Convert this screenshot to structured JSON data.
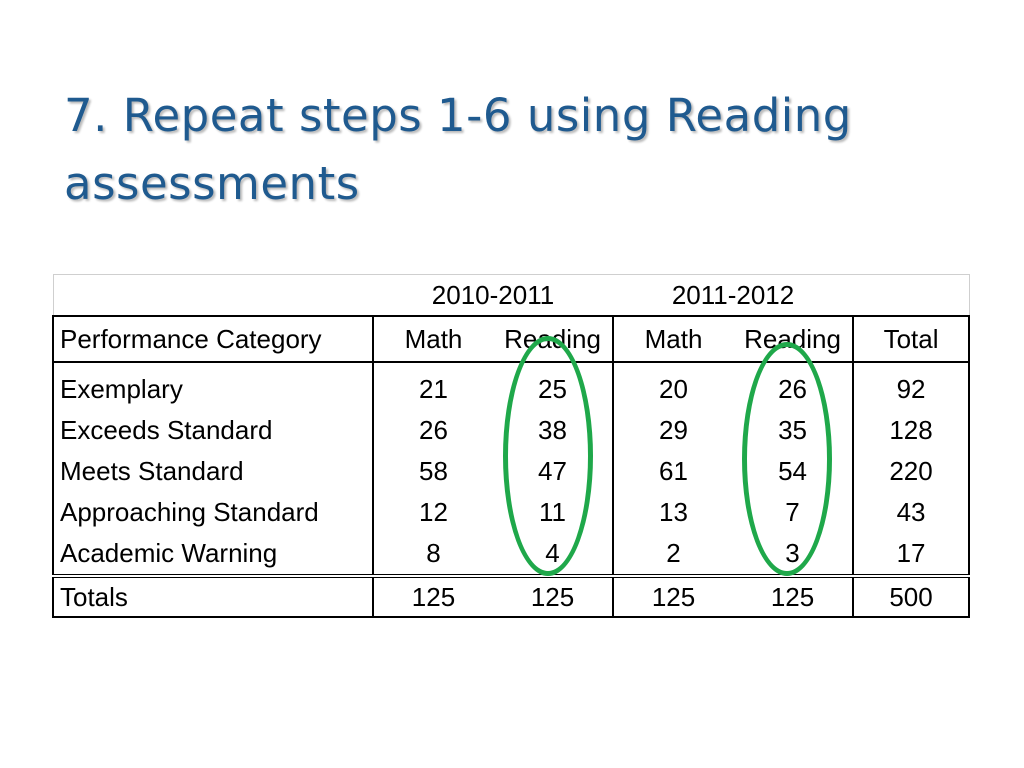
{
  "title": {
    "line1": "7. Repeat steps 1-6 using Reading",
    "line2": "assessments"
  },
  "table": {
    "years": [
      "2010-2011",
      "2011-2012"
    ],
    "headers": [
      "Performance Category",
      "Math",
      "Reading",
      "Math",
      "Reading",
      "Total"
    ],
    "rows": [
      {
        "category": "Exemplary",
        "values": [
          "21",
          "25",
          "20",
          "26",
          "92"
        ]
      },
      {
        "category": "Exceeds Standard",
        "values": [
          "26",
          "38",
          "29",
          "35",
          "128"
        ]
      },
      {
        "category": "Meets Standard",
        "values": [
          "58",
          "47",
          "61",
          "54",
          "220"
        ]
      },
      {
        "category": "Approaching Standard",
        "values": [
          "12",
          "11",
          "13",
          "7",
          "43"
        ]
      },
      {
        "category": "Academic Warning",
        "values": [
          "8",
          "4",
          "2",
          "3",
          "17"
        ]
      }
    ],
    "totals": {
      "label": "Totals",
      "values": [
        "125",
        "125",
        "125",
        "125",
        "500"
      ]
    }
  },
  "highlight_color": "#1fa84a",
  "title_color": "#1f5a8f"
}
